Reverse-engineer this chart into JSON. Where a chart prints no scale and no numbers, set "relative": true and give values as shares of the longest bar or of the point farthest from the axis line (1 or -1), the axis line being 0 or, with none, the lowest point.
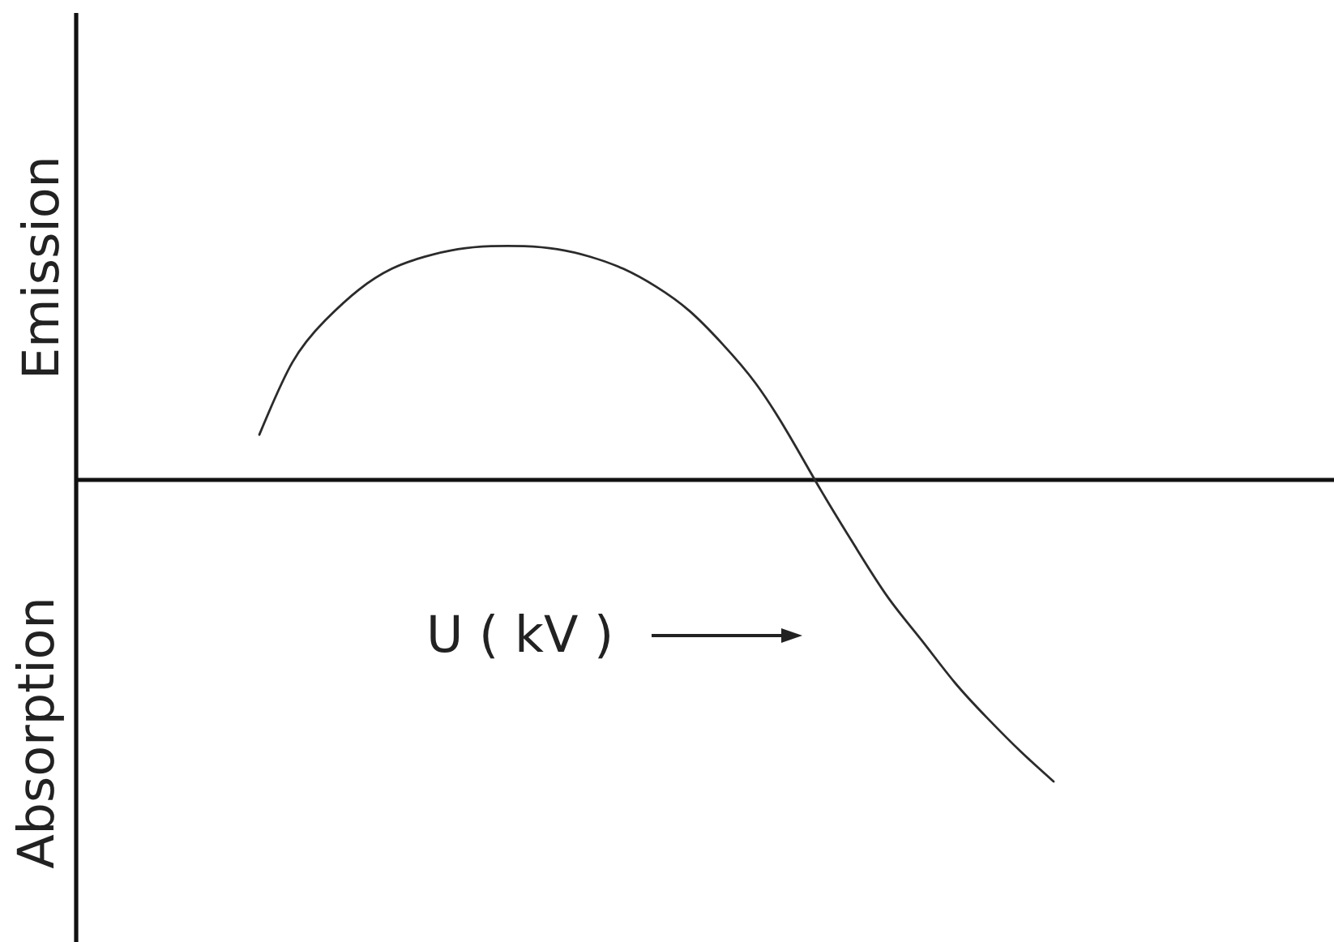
{
  "chart_data": {
    "type": "line",
    "relative": true,
    "xlabel": "U ( kV )",
    "ylabel": "Emission",
    "annotations": [
      "Absorption"
    ],
    "categories": [
      null,
      null,
      null,
      null,
      null,
      null,
      null,
      null,
      null,
      null,
      null,
      null,
      null,
      null,
      null,
      null,
      null,
      null,
      null,
      null,
      null,
      null,
      null,
      null,
      null
    ],
    "series": [
      {
        "color": "#2b2b2b",
        "values": [
          0.15,
          0.39,
          0.53,
          0.63,
          0.7,
          0.74,
          0.765,
          0.775,
          0.775,
          0.765,
          0.74,
          0.7,
          0.64,
          0.56,
          0.45,
          0.32,
          0.15,
          -0.04,
          -0.22,
          -0.39,
          -0.53,
          -0.67,
          -0.79,
          -0.9,
          -1
        ]
      }
    ]
  }
}
